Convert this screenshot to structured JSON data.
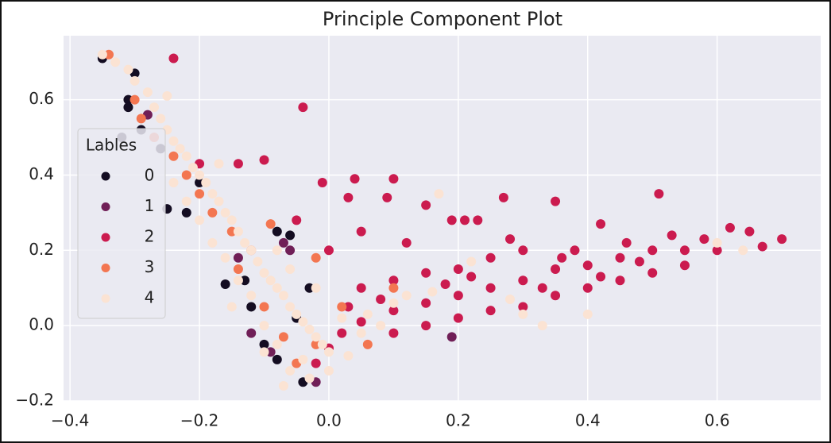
{
  "chart_data": {
    "type": "scatter",
    "title": "Principle Component Plot",
    "legend_title": "Lables",
    "legend": "center left",
    "grid": true,
    "xlim": [
      -0.41,
      0.76
    ],
    "ylim": [
      -0.2,
      0.77
    ],
    "xticks": [
      {
        "value": -0.4,
        "label": "−0.4"
      },
      {
        "value": -0.2,
        "label": "−0.2"
      },
      {
        "value": 0,
        "label": "0.0"
      },
      0.2,
      0.4,
      0.6
    ],
    "yticks": [
      {
        "value": -0.2,
        "label": "−0.2"
      },
      {
        "value": 0,
        "label": "0.0"
      },
      0.2,
      0.4,
      0.6
    ],
    "series": [
      {
        "name": "0",
        "color": "#140d22",
        "x": [
          -0.35,
          -0.3,
          -0.31,
          -0.31,
          -0.32,
          -0.29,
          -0.25,
          -0.26,
          -0.22,
          -0.16,
          -0.13,
          -0.08,
          -0.06,
          -0.1,
          -0.08,
          -0.04,
          -0.12,
          -0.2,
          -0.03,
          -0.05
        ],
        "values": [
          0.71,
          0.67,
          0.6,
          0.58,
          0.5,
          0.52,
          0.31,
          0.47,
          0.3,
          0.11,
          0.12,
          0.25,
          0.24,
          -0.05,
          -0.09,
          -0.15,
          0.05,
          0.38,
          0.1,
          0.02
        ]
      },
      {
        "name": "1",
        "color": "#701f57",
        "x": [
          -0.28,
          -0.06,
          -0.02,
          -0.09,
          0.19,
          -0.14,
          -0.07,
          -0.12
        ],
        "values": [
          0.56,
          0.2,
          -0.15,
          -0.07,
          -0.03,
          0.18,
          0.22,
          -0.02
        ]
      },
      {
        "name": "2",
        "color": "#cb1b4f",
        "x": [
          -0.24,
          -0.04,
          -0.2,
          -0.14,
          -0.1,
          -0.01,
          0.04,
          0.1,
          0.03,
          0.09,
          0.15,
          0.19,
          0.21,
          0.23,
          0.27,
          0.35,
          0.42,
          0.51,
          0.58,
          0.62,
          0.65,
          0.7,
          0.67,
          0.6,
          0.55,
          0.5,
          0.45,
          0.4,
          0.35,
          0.3,
          0.25,
          0.2,
          0.15,
          0.1,
          0.05,
          0.02,
          0,
          -0.02,
          0.3,
          0.35,
          0.4,
          0.45,
          0.5,
          0.55,
          0.25,
          0.2,
          0.15,
          0.1,
          0.3,
          0.25,
          0.2,
          0.15,
          0.1,
          0.05,
          0,
          -0.05,
          0.05,
          0.12,
          0.38,
          0.46,
          0.53,
          0.28,
          0.33,
          0.42,
          0.48,
          0.18,
          0.08,
          0.03,
          0.22,
          0.36
        ],
        "values": [
          0.71,
          0.58,
          0.43,
          0.43,
          0.44,
          0.38,
          0.39,
          0.39,
          0.34,
          0.34,
          0.32,
          0.28,
          0.28,
          0.28,
          0.34,
          0.33,
          0.27,
          0.35,
          0.23,
          0.26,
          0.25,
          0.23,
          0.21,
          0.2,
          0.2,
          0.2,
          0.18,
          0.16,
          0.15,
          0.12,
          0.1,
          0.08,
          0.06,
          0.04,
          0.01,
          -0.02,
          -0.06,
          -0.1,
          0.05,
          0.08,
          0.1,
          0.12,
          0.14,
          0.16,
          0.04,
          0.02,
          0,
          -0.02,
          0.2,
          0.18,
          0.15,
          0.14,
          0.12,
          0.1,
          0.2,
          0.28,
          0.25,
          0.22,
          0.2,
          0.22,
          0.24,
          0.23,
          0.1,
          0.13,
          0.17,
          0.11,
          0.07,
          0.05,
          0.13,
          0.18
        ]
      },
      {
        "name": "3",
        "color": "#f37651",
        "x": [
          -0.34,
          -0.3,
          -0.29,
          -0.27,
          -0.24,
          -0.22,
          -0.2,
          -0.18,
          -0.15,
          -0.12,
          -0.09,
          -0.02,
          -0.1,
          -0.07,
          -0.05,
          -0.02,
          0.02,
          0.06,
          -0.14,
          0.1
        ],
        "values": [
          0.72,
          0.6,
          0.55,
          0.5,
          0.45,
          0.4,
          0.35,
          0.3,
          0.25,
          0.2,
          0.27,
          0.18,
          0.05,
          -0.03,
          -0.1,
          -0.05,
          0.05,
          -0.05,
          0.15,
          0.1
        ]
      },
      {
        "name": "4",
        "color": "#fbe3d3",
        "x": [
          -0.35,
          -0.33,
          -0.31,
          -0.3,
          -0.28,
          -0.25,
          -0.27,
          -0.26,
          -0.25,
          -0.24,
          -0.23,
          -0.22,
          -0.21,
          -0.2,
          -0.19,
          -0.18,
          -0.17,
          -0.16,
          -0.15,
          -0.14,
          -0.13,
          -0.12,
          -0.11,
          -0.1,
          -0.09,
          -0.08,
          -0.07,
          -0.06,
          -0.05,
          -0.04,
          -0.03,
          -0.02,
          -0.01,
          0,
          -0.04,
          -0.06,
          -0.03,
          0,
          -0.08,
          -0.1,
          -0.12,
          -0.14,
          -0.06,
          -0.02,
          0.02,
          0.05,
          0.08,
          0.1,
          0.12,
          -0.18,
          -0.2,
          -0.22,
          -0.24,
          -0.16,
          -0.08,
          -0.15,
          -0.1,
          0.22,
          0.16,
          0.28,
          0.3,
          0.33,
          0.4,
          -0.17,
          0.17,
          0.64,
          0.6,
          0.06,
          0.03,
          -0.07
        ],
        "values": [
          0.72,
          0.7,
          0.68,
          0.65,
          0.62,
          0.61,
          0.58,
          0.55,
          0.52,
          0.49,
          0.47,
          0.45,
          0.42,
          0.4,
          0.38,
          0.35,
          0.33,
          0.3,
          0.28,
          0.25,
          0.22,
          0.2,
          0.17,
          0.14,
          0.12,
          0.1,
          0.08,
          0.05,
          0.03,
          0.01,
          -0.01,
          -0.03,
          -0.05,
          -0.07,
          -0.09,
          -0.12,
          -0.14,
          -0.12,
          -0.05,
          0,
          0.08,
          0.12,
          0.15,
          0.1,
          0.02,
          -0.02,
          0,
          0.06,
          0.08,
          0.22,
          0.28,
          0.33,
          0.38,
          0.18,
          0.2,
          0.05,
          -0.07,
          0.17,
          0.09,
          0.07,
          0.03,
          0,
          0.03,
          0.43,
          0.35,
          0.2,
          0.22,
          0.03,
          -0.08,
          -0.16
        ]
      }
    ]
  }
}
